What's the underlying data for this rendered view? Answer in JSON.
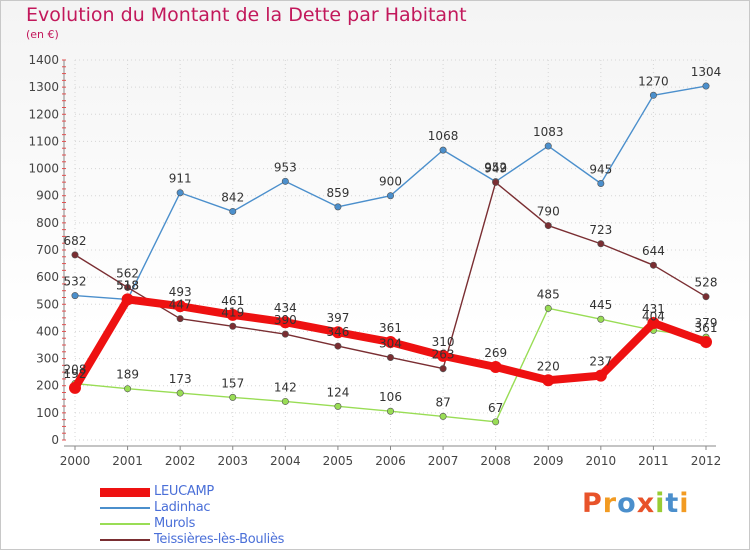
{
  "chart_data": {
    "type": "line",
    "title": "Evolution du Montant de la Dette par Habitant",
    "subtitle": "(en €)",
    "x": [
      "2000",
      "2001",
      "2002",
      "2003",
      "2004",
      "2005",
      "2006",
      "2007",
      "2008",
      "2009",
      "2010",
      "2011",
      "2012"
    ],
    "ylim": [
      0,
      1400
    ],
    "yticks": [
      0,
      100,
      200,
      300,
      400,
      500,
      600,
      700,
      800,
      900,
      1000,
      1100,
      1200,
      1300,
      1400
    ],
    "grid": true,
    "legend_position": "bottom-left",
    "series": [
      {
        "name": "LEUCAMP",
        "color": "#ee1111",
        "values": [
          192,
          518,
          493,
          461,
          434,
          397,
          361,
          310,
          269,
          220,
          237,
          431,
          361
        ],
        "labels": [
          "192",
          "518",
          "493",
          "461",
          "434",
          "397",
          "361",
          "310",
          "269",
          "220",
          "237",
          "431",
          "361"
        ]
      },
      {
        "name": "Ladinhac",
        "color": "#4b8fcc",
        "values": [
          532,
          518,
          911,
          842,
          953,
          859,
          900,
          1068,
          952,
          1083,
          945,
          1270,
          1304
        ],
        "labels": [
          "532",
          "518",
          "911",
          "842",
          "953",
          "859",
          "900",
          "1068",
          "952",
          "1083",
          "945",
          "1270",
          "1304"
        ]
      },
      {
        "name": "Murols",
        "color": "#99dd55",
        "values": [
          208,
          189,
          173,
          157,
          142,
          124,
          106,
          87,
          67,
          485,
          445,
          404,
          379
        ],
        "labels": [
          "208",
          "189",
          "173",
          "157",
          "142",
          "124",
          "106",
          "87",
          "67",
          "485",
          "445",
          "404",
          "379"
        ]
      },
      {
        "name": "Teissières-lès-Bouliès",
        "color": "#7a2e32",
        "values": [
          682,
          562,
          447,
          419,
          390,
          346,
          304,
          263,
          949,
          790,
          723,
          644,
          528
        ],
        "labels": [
          "682",
          "562",
          "447",
          "419",
          "390",
          "346",
          "304",
          "263",
          "949",
          "790",
          "723",
          "644",
          "528"
        ]
      }
    ]
  },
  "logo": {
    "text": "Proxiti",
    "colors": [
      "#e8532a",
      "#f29b22",
      "#4b8fcc",
      "#e8532a",
      "#99cc33",
      "#4b8fcc",
      "#f29b22"
    ]
  }
}
